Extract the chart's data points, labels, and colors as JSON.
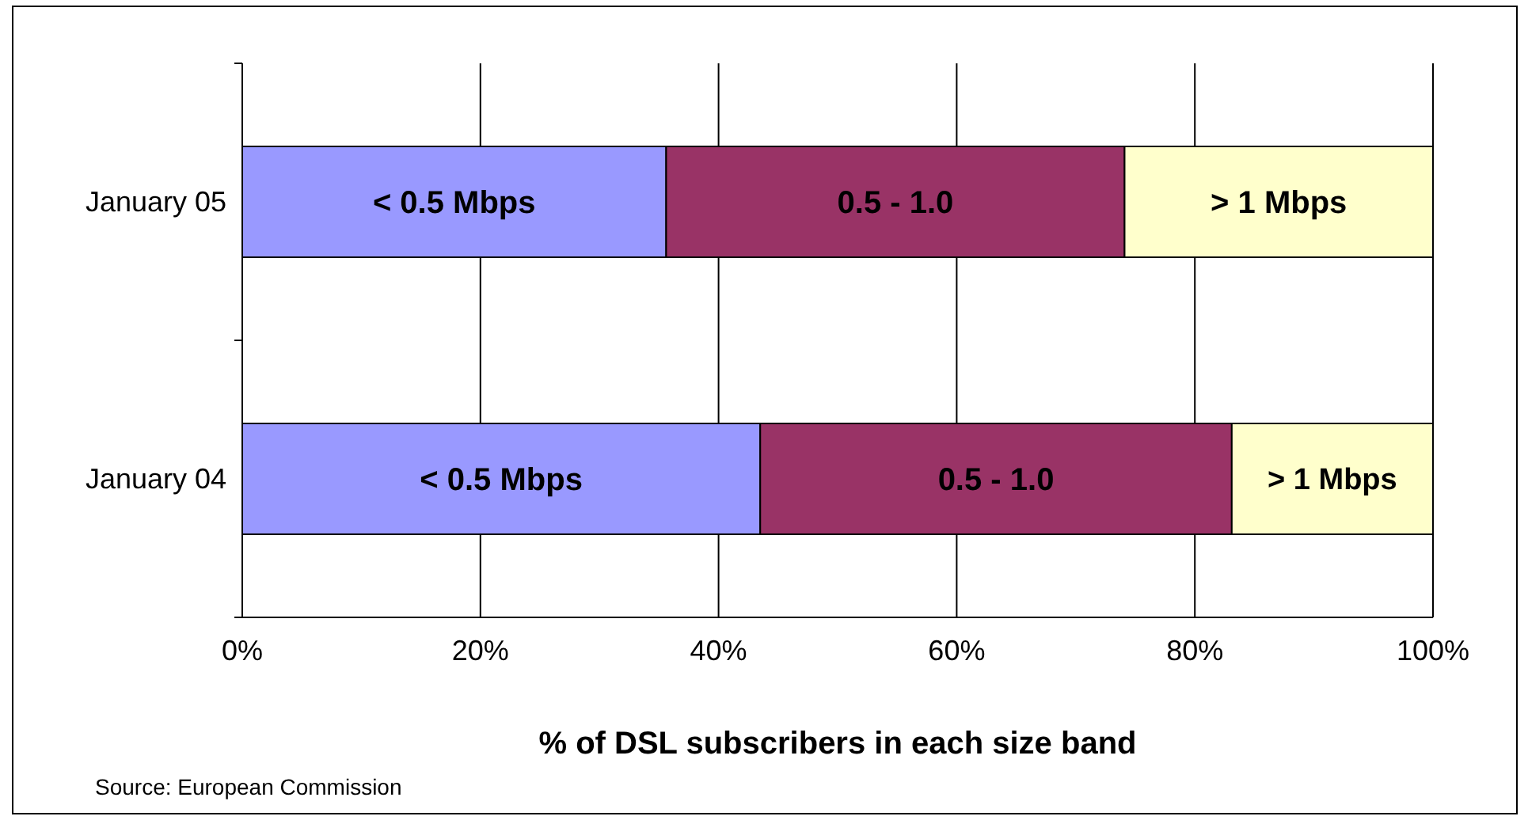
{
  "chart_data": {
    "type": "bar",
    "orientation": "horizontal",
    "stacked": true,
    "categories": [
      "January 05",
      "January 04"
    ],
    "series": [
      {
        "name": "< 0.5 Mbps",
        "color": "#9999ff",
        "values": [
          35.6,
          43.5
        ]
      },
      {
        "name": "0.5 - 1.0",
        "color": "#993366",
        "values": [
          38.5,
          39.6
        ]
      },
      {
        "name": "> 1 Mbps",
        "color": "#ffffcc",
        "values": [
          25.9,
          16.9
        ]
      }
    ],
    "xlim": [
      0,
      100
    ],
    "xticks": [
      {
        "value": 0,
        "label": "0%"
      },
      {
        "value": 20,
        "label": "20%"
      },
      {
        "value": 40,
        "label": "40%"
      },
      {
        "value": 60,
        "label": "60%"
      },
      {
        "value": 80,
        "label": "80%"
      },
      {
        "value": 100,
        "label": "100%"
      }
    ],
    "grid": "x",
    "xlabel": "% of DSL subscribers in each size band",
    "annotations": [
      "Source: European Commission"
    ]
  }
}
